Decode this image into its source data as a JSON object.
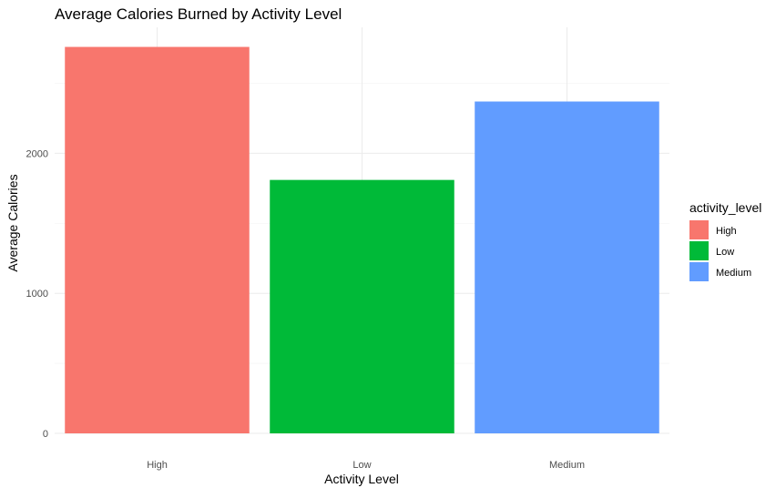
{
  "chart_data": {
    "type": "bar",
    "title": "Average Calories Burned by Activity Level",
    "xlabel": "Activity Level",
    "ylabel": "Average Calories",
    "categories": [
      "High",
      "Low",
      "Medium"
    ],
    "values": [
      2760,
      1810,
      2370
    ],
    "colors": [
      "#F8766D",
      "#00BA38",
      "#619CFF"
    ],
    "ylim": [
      0,
      2900
    ],
    "yticks": [
      0,
      1000,
      2000
    ],
    "grid": true,
    "legend": {
      "title": "activity_level",
      "position": "right",
      "items": [
        "High",
        "Low",
        "Medium"
      ]
    }
  }
}
